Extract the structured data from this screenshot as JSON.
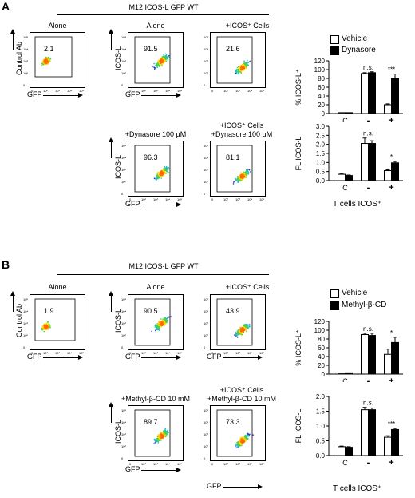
{
  "panelA": {
    "letter": "A",
    "header": "M12 ICOS-L GFP WT",
    "flow": {
      "top": [
        {
          "title": "Alone",
          "ylabel": "Control Ab",
          "xlabel": "GFP",
          "value": "2.1"
        },
        {
          "title": "Alone",
          "ylabel": "ICOS-L",
          "xlabel": "GFP",
          "value": "91.5"
        },
        {
          "title": "+ICOS⁺ Cells",
          "ylabel": "",
          "xlabel": "",
          "value": "21.6"
        }
      ],
      "bottom": [
        {
          "title": "+Dynasore 100 μM",
          "ylabel": "ICOS-L",
          "xlabel": "GFP",
          "value": "96.3"
        },
        {
          "title_line1": "+ICOS⁺ Cells",
          "title": "+Dynasore 100 μM",
          "ylabel": "",
          "xlabel": "",
          "value": "81.1"
        }
      ]
    },
    "legend": {
      "vehicle": "Vehicle",
      "treatment": "Dynasore"
    },
    "bar_xlabel": "T cells ICOS⁺"
  },
  "panelB": {
    "letter": "B",
    "header": "M12 ICOS-L GFP WT",
    "flow": {
      "top": [
        {
          "title": "Alone",
          "ylabel": "Control Ab",
          "xlabel": "GFP",
          "value": "1.9"
        },
        {
          "title": "Alone",
          "ylabel": "ICOS-L",
          "xlabel": "GFP",
          "value": "90.5"
        },
        {
          "title": "+ICOS⁺ Cells",
          "ylabel": "",
          "xlabel": "GFP",
          "value": "43.9"
        }
      ],
      "bottom": [
        {
          "title": "+Methyl-β-CD  10 mM",
          "ylabel": "ICOS-L",
          "xlabel": "GFP",
          "value": "89.7"
        },
        {
          "title_line1": "+ICOS⁺ Cells",
          "title": "+Methyl-β-CD  10 mM",
          "ylabel": "",
          "xlabel": "GFP",
          "value": "73.3"
        }
      ]
    },
    "legend": {
      "vehicle": "Vehicle",
      "treatment": "Methyl-β-CD"
    },
    "bar_xlabel": "T cells ICOS⁺"
  },
  "flow_tick_labels": [
    "0",
    "10²",
    "10³",
    "10⁴",
    "10⁵"
  ],
  "chart_data": [
    {
      "type": "bar",
      "panel": "A",
      "ylabel": "% ICOS-L⁺",
      "categories": [
        "C",
        "-",
        "+"
      ],
      "ylim": [
        0,
        120
      ],
      "yticks": [
        0,
        20,
        40,
        60,
        80,
        100,
        120
      ],
      "series": [
        {
          "name": "Vehicle",
          "values": [
            2,
            91,
            20
          ],
          "errors": [
            0,
            2,
            2
          ]
        },
        {
          "name": "Dynasore",
          "values": [
            2,
            93,
            80
          ],
          "errors": [
            0,
            2,
            10
          ]
        }
      ],
      "annotations": [
        "",
        "n.s.",
        "***"
      ]
    },
    {
      "type": "bar",
      "panel": "A",
      "ylabel": "FL ICOS-L",
      "categories": [
        "C",
        "-",
        "+"
      ],
      "ylim": [
        0,
        3.0
      ],
      "yticks": [
        "0.0",
        "0.5",
        "1.0",
        "1.5",
        "2.0",
        "2.5",
        "3.0"
      ],
      "series": [
        {
          "name": "Vehicle",
          "values": [
            0.35,
            2.05,
            0.55
          ],
          "errors": [
            0.05,
            0.3,
            0.05
          ]
        },
        {
          "name": "Dynasore",
          "values": [
            0.28,
            2.05,
            0.98
          ],
          "errors": [
            0.03,
            0.15,
            0.08
          ]
        }
      ],
      "annotations": [
        "",
        "n.s.",
        "*"
      ]
    },
    {
      "type": "bar",
      "panel": "B",
      "ylabel": "% ICOS-L⁺",
      "categories": [
        "C",
        "-",
        "+"
      ],
      "ylim": [
        0,
        120
      ],
      "yticks": [
        0,
        20,
        40,
        60,
        80,
        100,
        120
      ],
      "series": [
        {
          "name": "Vehicle",
          "values": [
            2,
            90,
            45
          ],
          "errors": [
            0,
            3,
            12
          ]
        },
        {
          "name": "Methyl-β-CD",
          "values": [
            3,
            88,
            72
          ],
          "errors": [
            0,
            5,
            12
          ]
        }
      ],
      "annotations": [
        "",
        "n.s.",
        "*"
      ]
    },
    {
      "type": "bar",
      "panel": "B",
      "ylabel": "FL ICOS-L",
      "categories": [
        "C",
        "-",
        "+"
      ],
      "ylim": [
        0,
        2.0
      ],
      "yticks": [
        "0.0",
        "0.5",
        "1.0",
        "1.5",
        "2.0"
      ],
      "series": [
        {
          "name": "Vehicle",
          "values": [
            0.3,
            1.55,
            0.62
          ],
          "errors": [
            0.02,
            0.08,
            0.05
          ]
        },
        {
          "name": "Methyl-β-CD",
          "values": [
            0.28,
            1.55,
            0.88
          ],
          "errors": [
            0.02,
            0.06,
            0.04
          ]
        }
      ],
      "annotations": [
        "",
        "n.s.",
        "***"
      ]
    }
  ]
}
